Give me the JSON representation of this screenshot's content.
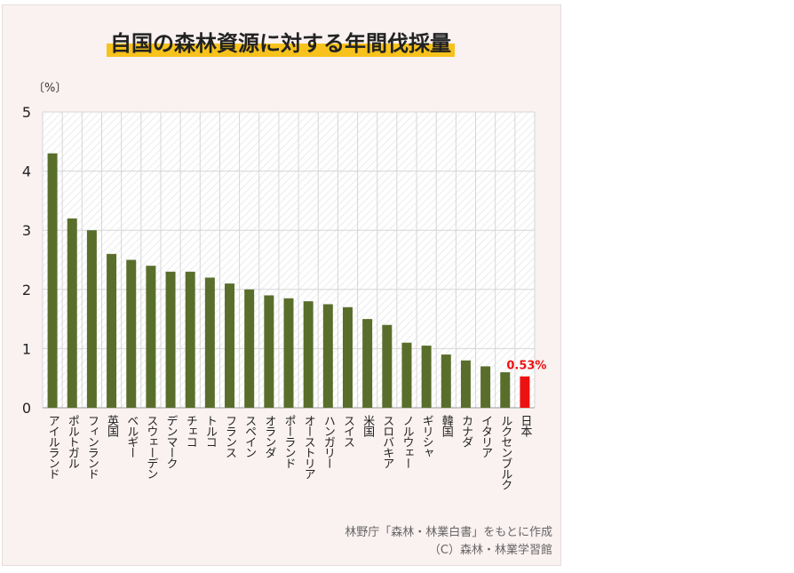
{
  "chart_data": {
    "type": "bar",
    "title": "自国の森林資源に対する年間伐採量",
    "ylabel": "〔%〕",
    "ylim": [
      0,
      5
    ],
    "yticks": [
      0,
      1,
      2,
      3,
      4,
      5
    ],
    "grid": true,
    "categories": [
      "アイルランド",
      "ポルトガル",
      "フィンランド",
      "英国",
      "ベルギー",
      "スウェーデン",
      "デンマーク",
      "チェコ",
      "トルコ",
      "フランス",
      "スペイン",
      "オランダ",
      "ポーランド",
      "オーストリア",
      "ハンガリー",
      "スイス",
      "米国",
      "スロバキア",
      "ノルウェー",
      "ギリシャ",
      "韓国",
      "カナダ",
      "イタリア",
      "ルクセンブルク",
      "日本"
    ],
    "values": [
      4.3,
      3.2,
      3.0,
      2.6,
      2.5,
      2.4,
      2.3,
      2.3,
      2.2,
      2.1,
      2.0,
      1.9,
      1.85,
      1.8,
      1.75,
      1.7,
      1.5,
      1.4,
      1.1,
      1.05,
      0.9,
      0.8,
      0.7,
      0.6,
      0.53
    ],
    "highlight_index": 24,
    "highlight_label": "0.53%",
    "colors": {
      "bar": "#5a6e2c",
      "highlight": "#ee1111",
      "grid": "#d6d6d6"
    }
  },
  "source": {
    "line1": "林野庁「森林・林業白書」をもとに作成",
    "line2": "（C）森林・林業学習館"
  }
}
